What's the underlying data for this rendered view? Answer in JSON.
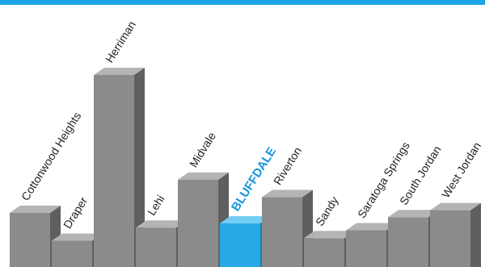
{
  "colors": {
    "top_rule": "#1aa6e6",
    "bar_front": "#8b8b8c",
    "bar_side": "#5f5f61",
    "bar_top": "#b4b4b6",
    "highlight_front": "#28a9e6",
    "highlight_side": "#157fb4",
    "highlight_top": "#74cdf2",
    "label": "#222222",
    "highlight_label": "#1596da"
  },
  "chart_data": {
    "type": "bar",
    "title": "",
    "xlabel": "",
    "ylabel": "",
    "grid": false,
    "legend": "none",
    "ylim": [
      0,
      230
    ],
    "categories": [
      "Cottonwood Heights",
      "Draper",
      "Herriman",
      "Lehi",
      "Midvale",
      "BLUFFDALE",
      "Riverton",
      "Sandy",
      "Saratoga Springs",
      "South Jordan",
      "West Jordan"
    ],
    "values": [
      62,
      30,
      220,
      45,
      100,
      50,
      80,
      33,
      42,
      57,
      65
    ],
    "highlight": "BLUFFDALE"
  }
}
